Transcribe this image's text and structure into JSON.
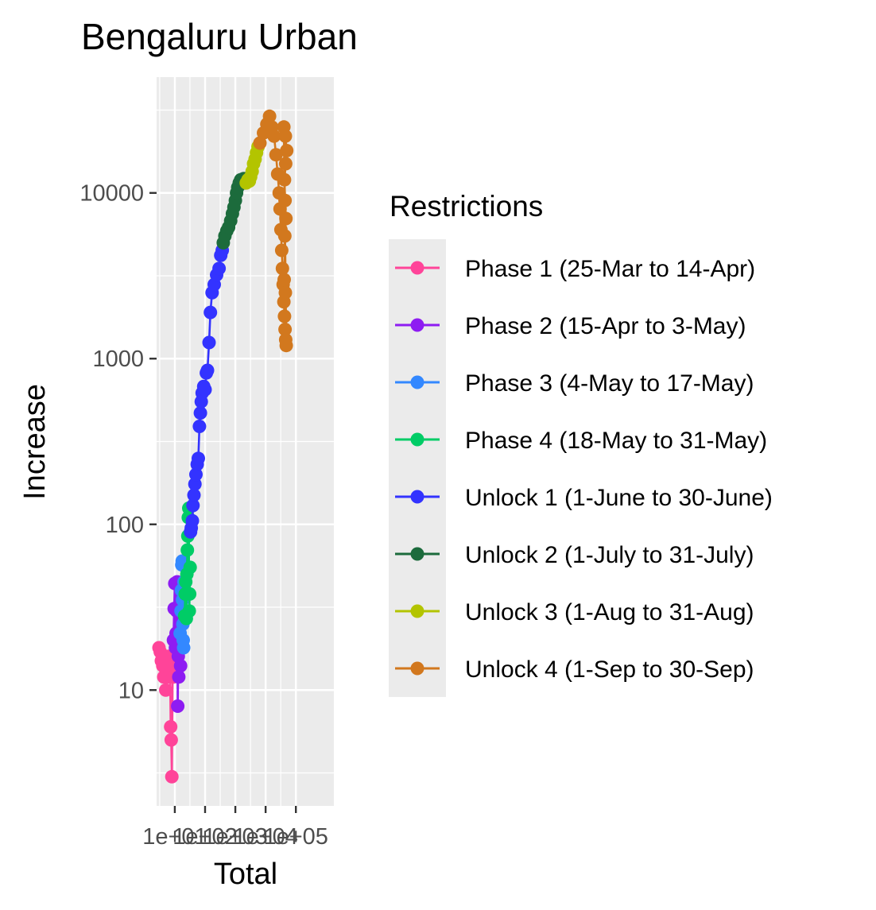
{
  "chart_data": {
    "type": "line",
    "title": "Bengaluru Urban",
    "xlabel": "Total",
    "ylabel": "Increase",
    "x_scale": "log10",
    "y_scale": "log10",
    "xlim": [
      2.5,
      1800000
    ],
    "ylim": [
      2.0,
      50000
    ],
    "x_ticks": [
      {
        "value": 10,
        "label": "1e+01"
      },
      {
        "value": 100,
        "label": "1e+02"
      },
      {
        "value": 1000,
        "label": "1e+03"
      },
      {
        "value": 10000,
        "label": "1e+04"
      },
      {
        "value": 100000,
        "label": "1e+05"
      }
    ],
    "y_ticks": [
      {
        "value": 10,
        "label": "10"
      },
      {
        "value": 100,
        "label": "100"
      },
      {
        "value": 1000,
        "label": "1000"
      },
      {
        "value": 10000,
        "label": "10000"
      }
    ],
    "grid": true,
    "legend": {
      "title": "Restrictions",
      "placement": "right"
    },
    "series": [
      {
        "name": "Phase 1 (25-Mar to 14-Apr)",
        "color": "#FF4499",
        "points": [
          [
            3,
            18
          ],
          [
            3.3,
            17
          ],
          [
            3.6,
            15
          ],
          [
            4,
            14
          ],
          [
            4.3,
            12
          ],
          [
            4.6,
            16
          ],
          [
            5,
            10
          ],
          [
            5.3,
            13
          ],
          [
            5.6,
            15
          ],
          [
            6,
            12
          ],
          [
            6.5,
            16
          ],
          [
            7,
            13
          ],
          [
            7.3,
            6
          ],
          [
            7.6,
            5
          ],
          [
            8,
            3
          ],
          [
            8.5,
            14
          ],
          [
            9,
            12
          ]
        ]
      },
      {
        "name": "Phase 2 (15-Apr to 3-May)",
        "color": "#8E1CF2",
        "points": [
          [
            9,
            20
          ],
          [
            9.5,
            31
          ],
          [
            10,
            44
          ],
          [
            10.5,
            18
          ],
          [
            11,
            22
          ],
          [
            11.5,
            30
          ],
          [
            12,
            45
          ],
          [
            12.5,
            8
          ],
          [
            13,
            16
          ],
          [
            13.5,
            12
          ],
          [
            14,
            20
          ],
          [
            14.5,
            25
          ],
          [
            15,
            18
          ],
          [
            15.5,
            14
          ]
        ]
      },
      {
        "name": "Phase 3 (4-May to 17-May)",
        "color": "#3388FF",
        "points": [
          [
            15,
            22
          ],
          [
            16,
            30
          ],
          [
            16.5,
            40
          ],
          [
            17,
            57
          ],
          [
            17.5,
            60
          ],
          [
            18,
            35
          ],
          [
            18.5,
            25
          ],
          [
            19,
            20
          ],
          [
            19.5,
            18
          ],
          [
            20,
            45
          ],
          [
            21,
            30
          ]
        ]
      },
      {
        "name": "Phase 4 (18-May to 31-May)",
        "color": "#00CC66",
        "points": [
          [
            21,
            28
          ],
          [
            22,
            38
          ],
          [
            23,
            45
          ],
          [
            24,
            27
          ],
          [
            25,
            50
          ],
          [
            26,
            70
          ],
          [
            27,
            85
          ],
          [
            28,
            110
          ],
          [
            29,
            125
          ],
          [
            30,
            30
          ],
          [
            31,
            38
          ],
          [
            32,
            55
          ]
        ]
      },
      {
        "name": "Unlock 1 (1-June to 30-June)",
        "color": "#3333FF",
        "points": [
          [
            33,
            90
          ],
          [
            35,
            95
          ],
          [
            38,
            105
          ],
          [
            40,
            130
          ],
          [
            43,
            150
          ],
          [
            46,
            175
          ],
          [
            50,
            200
          ],
          [
            55,
            230
          ],
          [
            60,
            250
          ],
          [
            65,
            390
          ],
          [
            70,
            470
          ],
          [
            75,
            550
          ],
          [
            80,
            620
          ],
          [
            90,
            680
          ],
          [
            100,
            650
          ],
          [
            110,
            820
          ],
          [
            120,
            850
          ],
          [
            135,
            1250
          ],
          [
            150,
            1900
          ],
          [
            170,
            2500
          ],
          [
            200,
            2800
          ],
          [
            240,
            3200
          ],
          [
            290,
            3500
          ],
          [
            330,
            4200
          ],
          [
            370,
            4500
          ]
        ]
      },
      {
        "name": "Unlock 2 (1-July to 31-July)",
        "color": "#1C6B3C",
        "points": [
          [
            400,
            5000
          ],
          [
            450,
            5500
          ],
          [
            520,
            5900
          ],
          [
            600,
            6200
          ],
          [
            700,
            6800
          ],
          [
            800,
            7500
          ],
          [
            900,
            8200
          ],
          [
            1000,
            9000
          ],
          [
            1100,
            10000
          ],
          [
            1200,
            10800
          ],
          [
            1350,
            11500
          ],
          [
            1500,
            12000
          ],
          [
            1700,
            11800
          ],
          [
            1900,
            12200
          ],
          [
            2100,
            11500
          ]
        ]
      },
      {
        "name": "Unlock 3 (1-Aug to 31-Aug)",
        "color": "#B3C400",
        "points": [
          [
            2300,
            11500
          ],
          [
            2600,
            12000
          ],
          [
            2900,
            11800
          ],
          [
            3200,
            12500
          ],
          [
            3600,
            13500
          ],
          [
            4000,
            15000
          ],
          [
            4500,
            16000
          ],
          [
            5000,
            17500
          ],
          [
            5600,
            19000
          ]
        ]
      },
      {
        "name": "Unlock 4 (1-Sep to 30-Sep)",
        "color": "#D2781E",
        "points": [
          [
            6500,
            20000
          ],
          [
            8500,
            23000
          ],
          [
            11000,
            26000
          ],
          [
            13500,
            29000
          ],
          [
            16000,
            25000
          ],
          [
            19000,
            22000
          ],
          [
            22000,
            17000
          ],
          [
            25000,
            13000
          ],
          [
            28000,
            10000
          ],
          [
            30000,
            8000
          ],
          [
            32000,
            6000
          ],
          [
            34000,
            4500
          ],
          [
            36000,
            3500
          ],
          [
            38000,
            2800
          ],
          [
            40000,
            2200
          ],
          [
            42000,
            1800
          ],
          [
            44000,
            1500
          ],
          [
            46000,
            1300
          ],
          [
            48000,
            1200
          ],
          [
            40000,
            25000
          ],
          [
            45000,
            22000
          ],
          [
            50000,
            18000
          ],
          [
            46000,
            15000
          ],
          [
            42000,
            12000
          ],
          [
            44000,
            9000
          ],
          [
            47000,
            7000
          ],
          [
            43000,
            5500
          ],
          [
            41000,
            3000
          ],
          [
            45000,
            2500
          ]
        ]
      }
    ]
  }
}
